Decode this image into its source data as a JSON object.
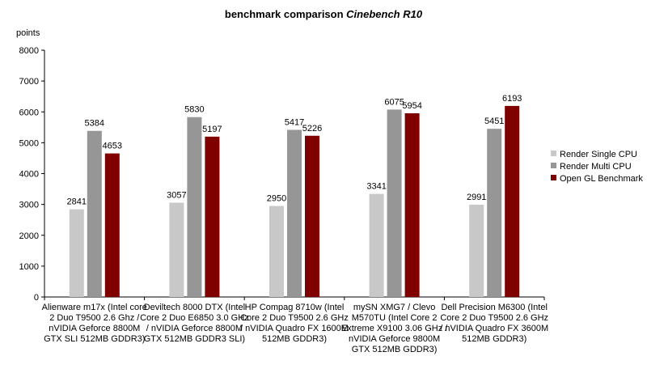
{
  "chart_data": {
    "type": "bar",
    "title": "benchmark comparison",
    "title_italic": "Cinebench R10",
    "y_label": "points",
    "categories": [
      "Alienware m17x (Intel core\n2 Duo T9500 2.6 Ghz /\nnVIDIA Geforce 8800M\nGTX SLI 512MB GDDR3)",
      "Deviltech 8000 DTX (Intel\nCore 2 Duo E6850 3.0 GHz\n/ nVIDIA Geforce 8800M\nGTX 512MB GDDR3 SLI)",
      "HP Compag 8710w (Intel\nCore 2 Duo T9500 2.6 GHz\n/ nVIDIA Quadro FX 1600M\n512MB GDDR3)",
      "mySN XMG7 / Clevo\nM570TU (Intel Core 2\nExtreme X9100 3.06 GHz /\nnVIDIA Geforce 9800M\nGTX 512MB GDDR3)",
      "Dell Precision M6300 (Intel\nCore 2 Duo T9500 2.6 GHz\n/ nVIDIA Quadro FX 3600M\n512MB GDDR3)"
    ],
    "series": [
      {
        "name": "Render Single CPU",
        "color": "#c8c8c8",
        "values": [
          2841,
          3057,
          2950,
          3341,
          2991
        ]
      },
      {
        "name": "Render Multi CPU",
        "color": "#969696",
        "values": [
          5384,
          5830,
          5417,
          6075,
          5451
        ]
      },
      {
        "name": "Open GL Benchmark",
        "color": "#800000",
        "values": [
          4653,
          5197,
          5226,
          5954,
          6193
        ]
      }
    ],
    "ylim": [
      0,
      8000
    ],
    "yticks": [
      0,
      1000,
      2000,
      3000,
      4000,
      5000,
      6000,
      7000,
      8000
    ],
    "legend": "right"
  }
}
